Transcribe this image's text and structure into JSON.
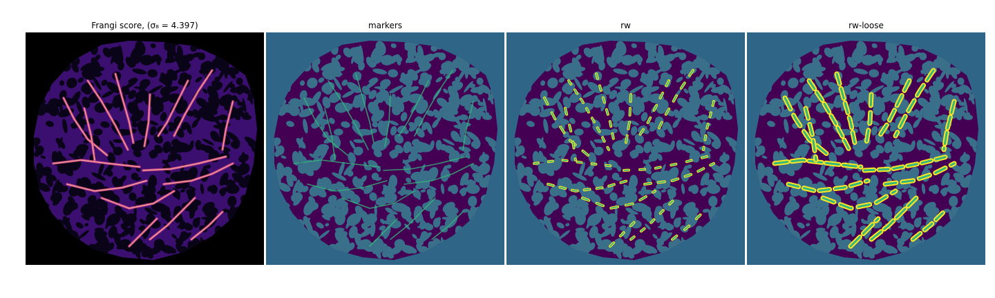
{
  "figure": {
    "panels": [
      {
        "title": "Frangi score, (σ₈ = 4.397)",
        "colormap": "magma",
        "background": "#000000"
      },
      {
        "title": "markers",
        "colormap": "viridis",
        "background": "#2f6688"
      },
      {
        "title": "rw",
        "colormap": "viridis",
        "background": "#2f6688"
      },
      {
        "title": "rw-loose",
        "colormap": "viridis",
        "background": "#2f6688"
      }
    ],
    "colors": {
      "viridis_background": "#2f6688",
      "viridis_dark": "#440154",
      "viridis_teal": "#3a6f8a",
      "viridis_green": "#35b779",
      "viridis_yellow": "#fde725",
      "magma_black": "#000000",
      "magma_purple": "#3b0f70",
      "magma_pink": "#e0488c",
      "magma_light": "#fcd7a0"
    }
  }
}
